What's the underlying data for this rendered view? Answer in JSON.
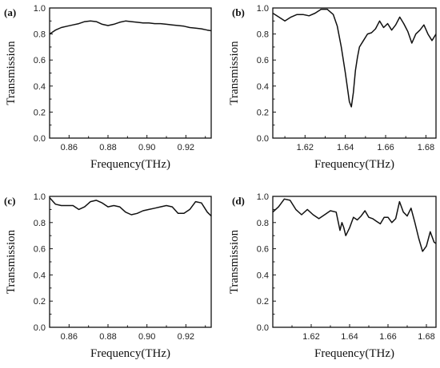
{
  "chart_data": [
    {
      "panel_label": "(a)",
      "type": "line",
      "xlabel": "Frequency(THz)",
      "ylabel": "Transmission",
      "xlim": [
        0.85,
        0.933
      ],
      "ylim": [
        0.0,
        1.0
      ],
      "xticks": [
        0.86,
        0.88,
        0.9,
        0.92
      ],
      "xtick_labels": [
        "0.86",
        "0.88",
        "0.90",
        "0.92"
      ],
      "yticks": [
        0.0,
        0.2,
        0.4,
        0.6,
        0.8,
        1.0
      ],
      "ytick_labels": [
        "0.0",
        "0.2",
        "0.4",
        "0.6",
        "0.8",
        "1.0"
      ],
      "series": [
        {
          "x": [
            0.85,
            0.853,
            0.856,
            0.859,
            0.862,
            0.865,
            0.868,
            0.871,
            0.874,
            0.877,
            0.88,
            0.883,
            0.886,
            0.889,
            0.892,
            0.895,
            0.898,
            0.901,
            0.904,
            0.907,
            0.91,
            0.913,
            0.916,
            0.919,
            0.922,
            0.925,
            0.928,
            0.931,
            0.933
          ],
          "y": [
            0.8,
            0.83,
            0.85,
            0.86,
            0.87,
            0.88,
            0.895,
            0.9,
            0.895,
            0.875,
            0.865,
            0.875,
            0.89,
            0.9,
            0.895,
            0.89,
            0.885,
            0.885,
            0.88,
            0.88,
            0.875,
            0.87,
            0.865,
            0.86,
            0.85,
            0.845,
            0.84,
            0.83,
            0.825
          ]
        }
      ]
    },
    {
      "panel_label": "(b)",
      "type": "line",
      "xlabel": "Frequency(THz)",
      "ylabel": "Transmission",
      "xlim": [
        1.604,
        1.685
      ],
      "ylim": [
        0.0,
        1.0
      ],
      "xticks": [
        1.62,
        1.64,
        1.66,
        1.68
      ],
      "xtick_labels": [
        "1.62",
        "1.64",
        "1.66",
        "1.68"
      ],
      "yticks": [
        0.0,
        0.2,
        0.4,
        0.6,
        0.8,
        1.0
      ],
      "ytick_labels": [
        "0.0",
        "0.2",
        "0.4",
        "0.6",
        "0.8",
        "1.0"
      ],
      "series": [
        {
          "x": [
            1.604,
            1.607,
            1.61,
            1.613,
            1.616,
            1.619,
            1.622,
            1.625,
            1.628,
            1.631,
            1.634,
            1.636,
            1.638,
            1.64,
            1.642,
            1.643,
            1.644,
            1.645,
            1.646,
            1.647,
            1.649,
            1.651,
            1.653,
            1.655,
            1.657,
            1.659,
            1.661,
            1.663,
            1.665,
            1.667,
            1.669,
            1.671,
            1.673,
            1.675,
            1.677,
            1.679,
            1.681,
            1.683,
            1.685
          ],
          "y": [
            0.96,
            0.93,
            0.9,
            0.93,
            0.95,
            0.95,
            0.94,
            0.96,
            0.99,
            0.99,
            0.95,
            0.86,
            0.7,
            0.5,
            0.28,
            0.24,
            0.35,
            0.52,
            0.62,
            0.7,
            0.75,
            0.8,
            0.81,
            0.84,
            0.9,
            0.85,
            0.88,
            0.83,
            0.87,
            0.93,
            0.88,
            0.82,
            0.73,
            0.8,
            0.83,
            0.87,
            0.8,
            0.75,
            0.8
          ]
        }
      ]
    },
    {
      "panel_label": "(c)",
      "type": "line",
      "xlabel": "Frequency(THz)",
      "ylabel": "Transmission",
      "xlim": [
        0.85,
        0.933
      ],
      "ylim": [
        0.0,
        1.0
      ],
      "xticks": [
        0.86,
        0.88,
        0.9,
        0.92
      ],
      "xtick_labels": [
        "0.86",
        "0.88",
        "0.90",
        "0.92"
      ],
      "yticks": [
        0.0,
        0.2,
        0.4,
        0.6,
        0.8,
        1.0
      ],
      "ytick_labels": [
        "0.0",
        "0.2",
        "0.4",
        "0.6",
        "0.8",
        "1.0"
      ],
      "series": [
        {
          "x": [
            0.85,
            0.853,
            0.856,
            0.859,
            0.862,
            0.865,
            0.868,
            0.871,
            0.874,
            0.877,
            0.88,
            0.883,
            0.886,
            0.889,
            0.892,
            0.895,
            0.898,
            0.901,
            0.904,
            0.907,
            0.91,
            0.913,
            0.916,
            0.919,
            0.922,
            0.925,
            0.928,
            0.931,
            0.933
          ],
          "y": [
            0.99,
            0.94,
            0.93,
            0.93,
            0.93,
            0.9,
            0.92,
            0.96,
            0.97,
            0.95,
            0.92,
            0.93,
            0.92,
            0.88,
            0.86,
            0.87,
            0.89,
            0.9,
            0.91,
            0.92,
            0.93,
            0.92,
            0.87,
            0.87,
            0.9,
            0.96,
            0.95,
            0.88,
            0.85
          ]
        }
      ]
    },
    {
      "panel_label": "(d)",
      "type": "line",
      "xlabel": "Frequency(THz)",
      "ylabel": "Transmission",
      "xlim": [
        1.6,
        1.685
      ],
      "ylim": [
        0.0,
        1.0
      ],
      "xticks": [
        1.62,
        1.64,
        1.66,
        1.68
      ],
      "xtick_labels": [
        "1.62",
        "1.64",
        "1.66",
        "1.68"
      ],
      "yticks": [
        0.0,
        0.2,
        0.4,
        0.6,
        0.8,
        1.0
      ],
      "ytick_labels": [
        "0.0",
        "0.2",
        "0.4",
        "0.6",
        "0.8",
        "1.0"
      ],
      "series": [
        {
          "x": [
            1.6,
            1.603,
            1.606,
            1.609,
            1.612,
            1.615,
            1.618,
            1.621,
            1.624,
            1.627,
            1.63,
            1.633,
            1.635,
            1.636,
            1.637,
            1.638,
            1.64,
            1.642,
            1.644,
            1.646,
            1.648,
            1.65,
            1.652,
            1.654,
            1.656,
            1.658,
            1.66,
            1.662,
            1.664,
            1.666,
            1.668,
            1.67,
            1.672,
            1.674,
            1.676,
            1.678,
            1.68,
            1.682,
            1.684,
            1.685
          ],
          "y": [
            0.88,
            0.92,
            0.98,
            0.97,
            0.9,
            0.86,
            0.9,
            0.86,
            0.83,
            0.86,
            0.89,
            0.88,
            0.74,
            0.8,
            0.76,
            0.7,
            0.76,
            0.84,
            0.82,
            0.85,
            0.89,
            0.84,
            0.83,
            0.81,
            0.79,
            0.84,
            0.84,
            0.8,
            0.83,
            0.96,
            0.88,
            0.85,
            0.91,
            0.8,
            0.68,
            0.58,
            0.62,
            0.73,
            0.65,
            0.64
          ]
        }
      ]
    }
  ]
}
